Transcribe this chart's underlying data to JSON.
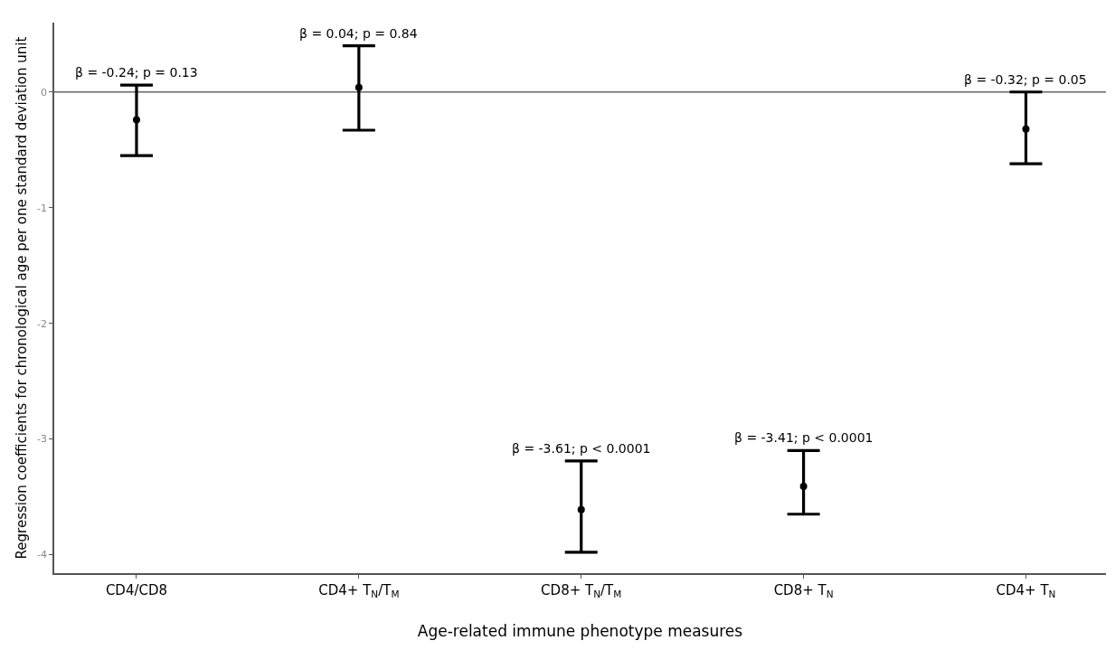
{
  "chart_data": {
    "type": "scatter",
    "xlabel": "Age-related immune phenotype measures",
    "ylabel": "Regression coefficients for chronological age per one standard deviation unit",
    "categories": [
      "CD4/CD8",
      "CD4+ T$_{N}$/T$_{M}$",
      "CD8+ T$_{N}$/T$_{M}$",
      "CD8+ T$_{N}$",
      "CD4+ T$_{N}$"
    ],
    "values": [
      -0.24,
      0.04,
      -3.61,
      -3.41,
      -0.32
    ],
    "errors": [
      [
        -0.55,
        0.06
      ],
      [
        -0.33,
        0.4
      ],
      [
        -3.98,
        -3.19
      ],
      [
        -3.65,
        -3.1
      ],
      [
        -0.62,
        0.0
      ]
    ],
    "color": "#000000",
    "marker": "circle",
    "ylim": [
      -4.16,
      0.6
    ],
    "yticks": [
      -4,
      -3,
      -2,
      -1,
      0
    ],
    "grid": false,
    "ref_lines": [
      {
        "axis": "y",
        "value": 0,
        "color": "#666666"
      }
    ],
    "annotations": [
      "β = -0.24; p = 0.13",
      "β = 0.04; p = 0.84",
      "β = -3.61; p < 0.0001",
      "β = -3.41; p < 0.0001",
      "β = -0.32; p = 0.05"
    ]
  }
}
